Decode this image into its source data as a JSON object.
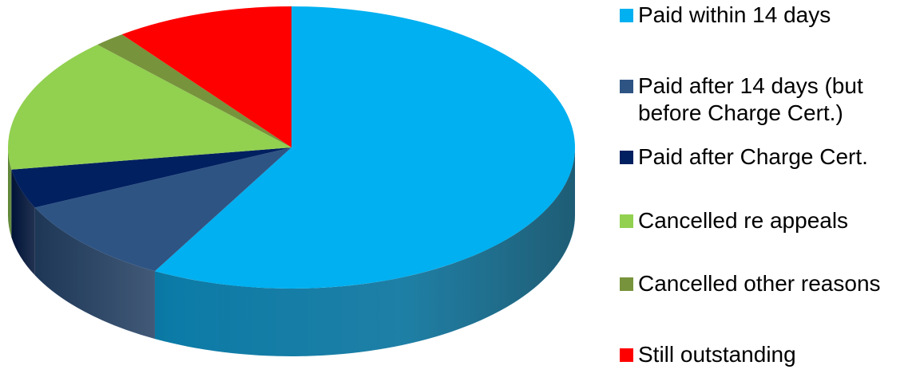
{
  "chart_data": {
    "type": "pie",
    "style": "3d",
    "title": "",
    "legend_position": "right",
    "slices": [
      {
        "label": "Paid within 14 days",
        "value": 58.0,
        "color": "#00b0f0",
        "side_color": "#0a7aa6"
      },
      {
        "label": "Paid after 14 days (but\nbefore Charge Cert.)",
        "value": 10.0,
        "color": "#2e5484",
        "side_color": "#223f63"
      },
      {
        "label": "Paid after Charge Cert.",
        "value": 4.5,
        "color": "#002060",
        "side_color": "#001640"
      },
      {
        "label": "Cancelled re appeals",
        "value": 15.5,
        "color": "#92d050",
        "side_color": "#6b9c3a"
      },
      {
        "label": "Cancelled other reasons",
        "value": 1.8,
        "color": "#77933c",
        "side_color": "#566b2b"
      },
      {
        "label": "Still outstanding",
        "value": 10.2,
        "color": "#ff0000",
        "side_color": "#b80000"
      }
    ]
  }
}
